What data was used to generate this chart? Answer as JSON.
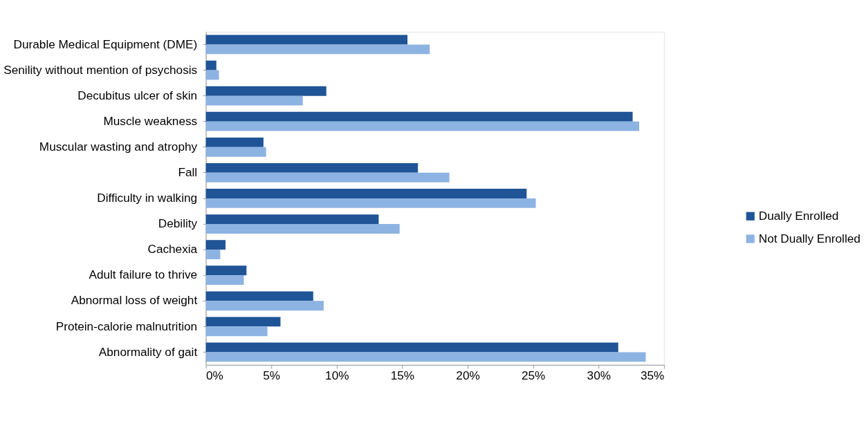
{
  "chart_data": {
    "type": "bar",
    "orientation": "horizontal",
    "categories": [
      "Durable Medical Equipment (DME)",
      "Senility without mention of psychosis",
      "Decubitus ulcer of skin",
      "Muscle weakness",
      "Muscular wasting and atrophy",
      "Fall",
      "Difficulty in walking",
      "Debility",
      "Cachexia",
      "Adult failure to thrive",
      "Abnormal loss of weight",
      "Protein-calorie malnutrition",
      "Abnormality of gait"
    ],
    "series": [
      {
        "name": "Dually Enrolled",
        "color": "#1f5496",
        "values": [
          15.4,
          0.8,
          9.2,
          32.6,
          4.4,
          16.2,
          24.5,
          13.2,
          1.5,
          3.1,
          8.2,
          5.7,
          31.5
        ]
      },
      {
        "name": "Not Dually Enrolled",
        "color": "#8db3e2",
        "values": [
          17.1,
          1.0,
          7.4,
          33.1,
          4.6,
          18.6,
          25.2,
          14.8,
          1.1,
          2.9,
          9.0,
          4.7,
          33.6
        ]
      }
    ],
    "xlim": [
      0,
      35
    ],
    "xticks": [
      {
        "value": 0,
        "label": "0%"
      },
      {
        "value": 5,
        "label": "5%"
      },
      {
        "value": 10,
        "label": "10%"
      },
      {
        "value": 15,
        "label": "15%"
      },
      {
        "value": 20,
        "label": "20%"
      },
      {
        "value": 25,
        "label": "25%"
      },
      {
        "value": 30,
        "label": "30%"
      },
      {
        "value": 35,
        "label": "35%"
      }
    ],
    "grid": false,
    "legend": "right"
  }
}
